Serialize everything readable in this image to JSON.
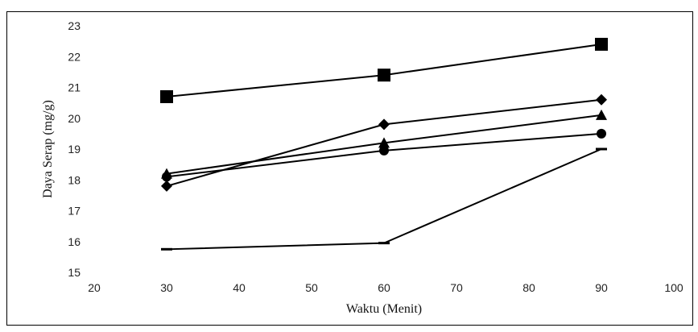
{
  "chart_data": {
    "type": "line",
    "xlabel": "Waktu (Menit)",
    "ylabel": "Daya Serap (mg/g)",
    "xlim": [
      20,
      100
    ],
    "ylim": [
      15,
      23
    ],
    "x_ticks": [
      20,
      30,
      40,
      50,
      60,
      70,
      80,
      90,
      100
    ],
    "y_ticks": [
      15,
      16,
      17,
      18,
      19,
      20,
      21,
      22,
      23
    ],
    "grid": false,
    "legend": "none",
    "x": [
      30,
      60,
      90
    ],
    "series": [
      {
        "marker": "square",
        "values": [
          20.7,
          21.4,
          22.4
        ]
      },
      {
        "marker": "diamond",
        "values": [
          17.8,
          19.8,
          20.6
        ]
      },
      {
        "marker": "triangle",
        "values": [
          18.2,
          19.2,
          20.1
        ]
      },
      {
        "marker": "circle",
        "values": [
          18.1,
          18.95,
          19.5
        ]
      },
      {
        "marker": "dash",
        "values": [
          15.75,
          15.95,
          19.0
        ]
      }
    ],
    "colors": {
      "line": "#000000",
      "marker": "#000000"
    }
  }
}
